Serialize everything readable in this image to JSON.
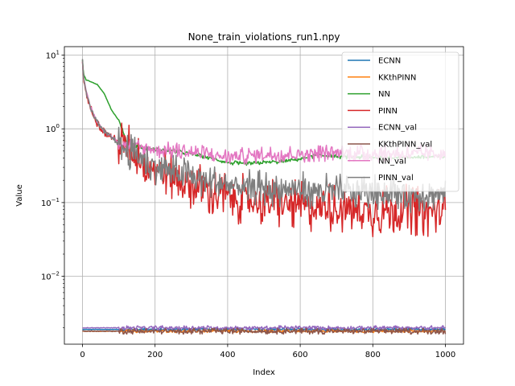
{
  "chart_data": {
    "type": "line",
    "title": "None_train_violations_run1.npy",
    "xlabel": "Index",
    "ylabel": "Value",
    "xlim": [
      -50,
      1050
    ],
    "ylim": [
      0.0012,
      13
    ],
    "yscale": "log",
    "grid": true,
    "legend_position": "top-right",
    "x_ticks": [
      0,
      200,
      400,
      600,
      800,
      1000
    ],
    "x_tick_labels": [
      "0",
      "200",
      "400",
      "600",
      "800",
      "1000"
    ],
    "y_ticks": [
      0.01,
      0.1,
      1,
      10
    ],
    "y_tick_labels": [
      "10^-2",
      "10^-1",
      "10^0",
      "10^1"
    ],
    "series": [
      {
        "name": "ECNN",
        "color": "#1f77b4",
        "x": [
          0,
          1000
        ],
        "values": [
          0.0019,
          0.0019
        ],
        "noise": 0.02
      },
      {
        "name": "KKthPINN",
        "color": "#ff7f0e",
        "x": [
          0,
          1000
        ],
        "values": [
          0.0018,
          0.0018
        ],
        "noise": 0.02
      },
      {
        "name": "NN",
        "color": "#2ca02c",
        "x": [
          0,
          3,
          10,
          20,
          40,
          60,
          80,
          100,
          120,
          160,
          200,
          250,
          300,
          350,
          400,
          450,
          500,
          550,
          600,
          650,
          700,
          800,
          900,
          1000
        ],
        "values": [
          8.5,
          5.5,
          4.6,
          4.4,
          4.0,
          3.0,
          1.8,
          1.3,
          0.7,
          0.56,
          0.52,
          0.5,
          0.46,
          0.4,
          0.35,
          0.33,
          0.35,
          0.36,
          0.39,
          0.44,
          0.42,
          0.41,
          0.41,
          0.42
        ],
        "noise": 0.03
      },
      {
        "name": "PINN",
        "color": "#d62728",
        "x": [
          0,
          3,
          10,
          20,
          40,
          60,
          80,
          100,
          120,
          160,
          200,
          250,
          300,
          350,
          400,
          450,
          500,
          550,
          600,
          650,
          700,
          750,
          800,
          850,
          900,
          950,
          1000
        ],
        "values": [
          8.0,
          4.8,
          3.0,
          2.0,
          1.2,
          0.9,
          0.78,
          0.65,
          0.56,
          0.4,
          0.3,
          0.22,
          0.17,
          0.14,
          0.12,
          0.11,
          0.1,
          0.095,
          0.09,
          0.085,
          0.085,
          0.08,
          0.075,
          0.08,
          0.08,
          0.075,
          0.075
        ],
        "noise": 0.35
      },
      {
        "name": "ECNN_val",
        "color": "#9467bd",
        "x": [
          0,
          1000
        ],
        "values": [
          0.002,
          0.002
        ],
        "noise": 0.03
      },
      {
        "name": "KKthPINN_val",
        "color": "#8c564b",
        "x": [
          0,
          1000
        ],
        "values": [
          0.0018,
          0.0018
        ],
        "noise": 0.04
      },
      {
        "name": "NN_val",
        "color": "#e377c2",
        "x": [
          0,
          3,
          10,
          20,
          40,
          60,
          80,
          100,
          120,
          160,
          200,
          250,
          300,
          350,
          400,
          450,
          500,
          550,
          600,
          650,
          700,
          800,
          900,
          1000
        ],
        "values": [
          8.3,
          5.0,
          3.2,
          2.1,
          1.25,
          0.92,
          0.78,
          0.66,
          0.6,
          0.55,
          0.52,
          0.5,
          0.48,
          0.44,
          0.42,
          0.43,
          0.45,
          0.45,
          0.46,
          0.47,
          0.47,
          0.46,
          0.46,
          0.46
        ],
        "noise": 0.12
      },
      {
        "name": "PINN_val",
        "color": "#7f7f7f",
        "x": [
          0,
          3,
          10,
          20,
          40,
          60,
          80,
          100,
          120,
          160,
          200,
          250,
          300,
          350,
          400,
          450,
          500,
          550,
          600,
          650,
          700,
          750,
          800,
          850,
          900,
          950,
          1000
        ],
        "values": [
          8.2,
          4.9,
          3.1,
          2.05,
          1.22,
          0.9,
          0.77,
          0.63,
          0.52,
          0.4,
          0.31,
          0.26,
          0.22,
          0.19,
          0.17,
          0.16,
          0.155,
          0.15,
          0.15,
          0.145,
          0.14,
          0.14,
          0.14,
          0.135,
          0.13,
          0.13,
          0.13
        ],
        "noise": 0.25
      }
    ]
  }
}
